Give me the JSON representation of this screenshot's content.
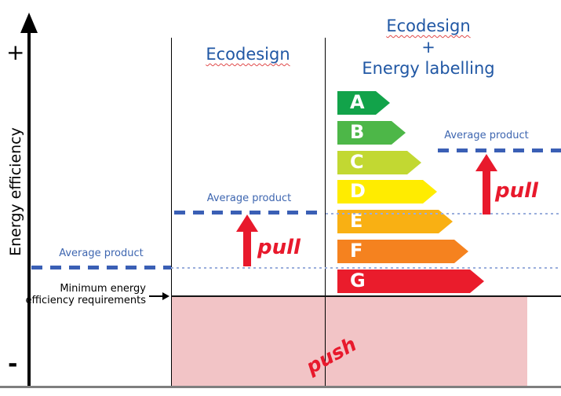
{
  "axis": {
    "y_title": "Energy efficiency",
    "plus": "+",
    "minus": "-"
  },
  "headings": {
    "left": "Ecodesign",
    "right_line1": "Ecodesign",
    "right_line2": "+",
    "right_line3": "Energy labelling"
  },
  "energy_labels": [
    {
      "grade": "A",
      "color": "#12A34A"
    },
    {
      "grade": "B",
      "color": "#4DB748"
    },
    {
      "grade": "C",
      "color": "#C2D832"
    },
    {
      "grade": "D",
      "color": "#FFEC00"
    },
    {
      "grade": "E",
      "color": "#F9B013"
    },
    {
      "grade": "F",
      "color": "#F5821F"
    },
    {
      "grade": "G",
      "color": "#EA1C2C"
    }
  ],
  "average_product": {
    "label": "Average product"
  },
  "annotations": {
    "pull_mid": "pull",
    "pull_right": "pull",
    "push": "push",
    "min_req_line1": "Minimum energy",
    "min_req_line2": "efficiency requirements"
  },
  "colors": {
    "heading_blue": "#2057A4",
    "avg_blue": "#3E66B0",
    "dash_blue": "#3A5FB5",
    "dot_blue": "#9AAEDC",
    "accent_red": "#E8192C",
    "push_pink": "#F2C4C6"
  }
}
